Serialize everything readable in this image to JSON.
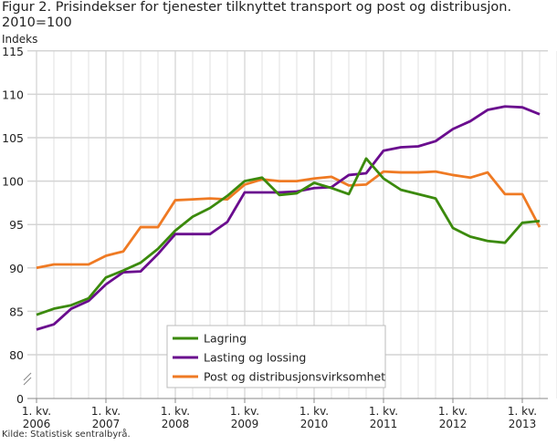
{
  "chart_data": {
    "type": "line",
    "title": "Figur 2. Prisindekser for tjenester tilknyttet transport og post og distribusjon. 2010=100",
    "ylabel": "Indeks",
    "ylim": [
      0,
      115
    ],
    "y_axis_break": [
      0,
      80
    ],
    "yticks": [
      0,
      80,
      85,
      90,
      95,
      100,
      105,
      110,
      115
    ],
    "grid": true,
    "legend_position": "bottom-center",
    "xtick_labels": [
      [
        "1. kv.",
        "2006"
      ],
      [
        "1. kv.",
        "2007"
      ],
      [
        "1. kv.",
        "2008"
      ],
      [
        "1. kv.",
        "2009"
      ],
      [
        "1. kv.",
        "2010"
      ],
      [
        "1. kv.",
        "2011"
      ],
      [
        "1. kv.",
        "2012"
      ],
      [
        "1. kv.",
        "2013"
      ]
    ],
    "x_start": "2006K1",
    "x_end": "2013K2",
    "series": [
      {
        "name": "Lagring",
        "color": "#3b8a0c",
        "values": [
          84.6,
          85.3,
          85.7,
          86.5,
          88.9,
          89.7,
          90.6,
          92.2,
          94.3,
          95.9,
          96.9,
          98.3,
          100,
          100.4,
          98.4,
          98.6,
          99.8,
          99.2,
          98.5,
          102.6,
          100.3,
          99.0,
          98.5,
          98.0,
          94.6,
          93.6,
          93.1,
          92.9,
          95.2,
          95.4
        ]
      },
      {
        "name": "Lasting og lossing",
        "color": "#6a0c8e",
        "values": [
          82.9,
          83.5,
          85.3,
          86.2,
          88.1,
          89.5,
          89.6,
          91.6,
          93.9,
          93.9,
          93.9,
          95.3,
          98.7,
          98.7,
          98.7,
          98.8,
          99.2,
          99.3,
          100.7,
          100.9,
          103.5,
          103.9,
          104.0,
          104.6,
          106.0,
          106.9,
          108.2,
          108.6,
          108.5,
          107.7
        ]
      },
      {
        "name": "Post og distribusjonsvirksomhet",
        "color": "#ef7a23",
        "values": [
          90.0,
          90.4,
          90.4,
          90.4,
          91.4,
          91.9,
          94.7,
          94.7,
          97.8,
          97.9,
          98.0,
          97.9,
          99.6,
          100.2,
          100.0,
          100.0,
          100.3,
          100.5,
          99.5,
          99.6,
          101.1,
          101.0,
          101.0,
          101.1,
          100.7,
          100.4,
          101.0,
          98.5,
          98.5,
          94.7
        ]
      }
    ]
  },
  "source": "Kilde: Statistisk sentralbyrå."
}
